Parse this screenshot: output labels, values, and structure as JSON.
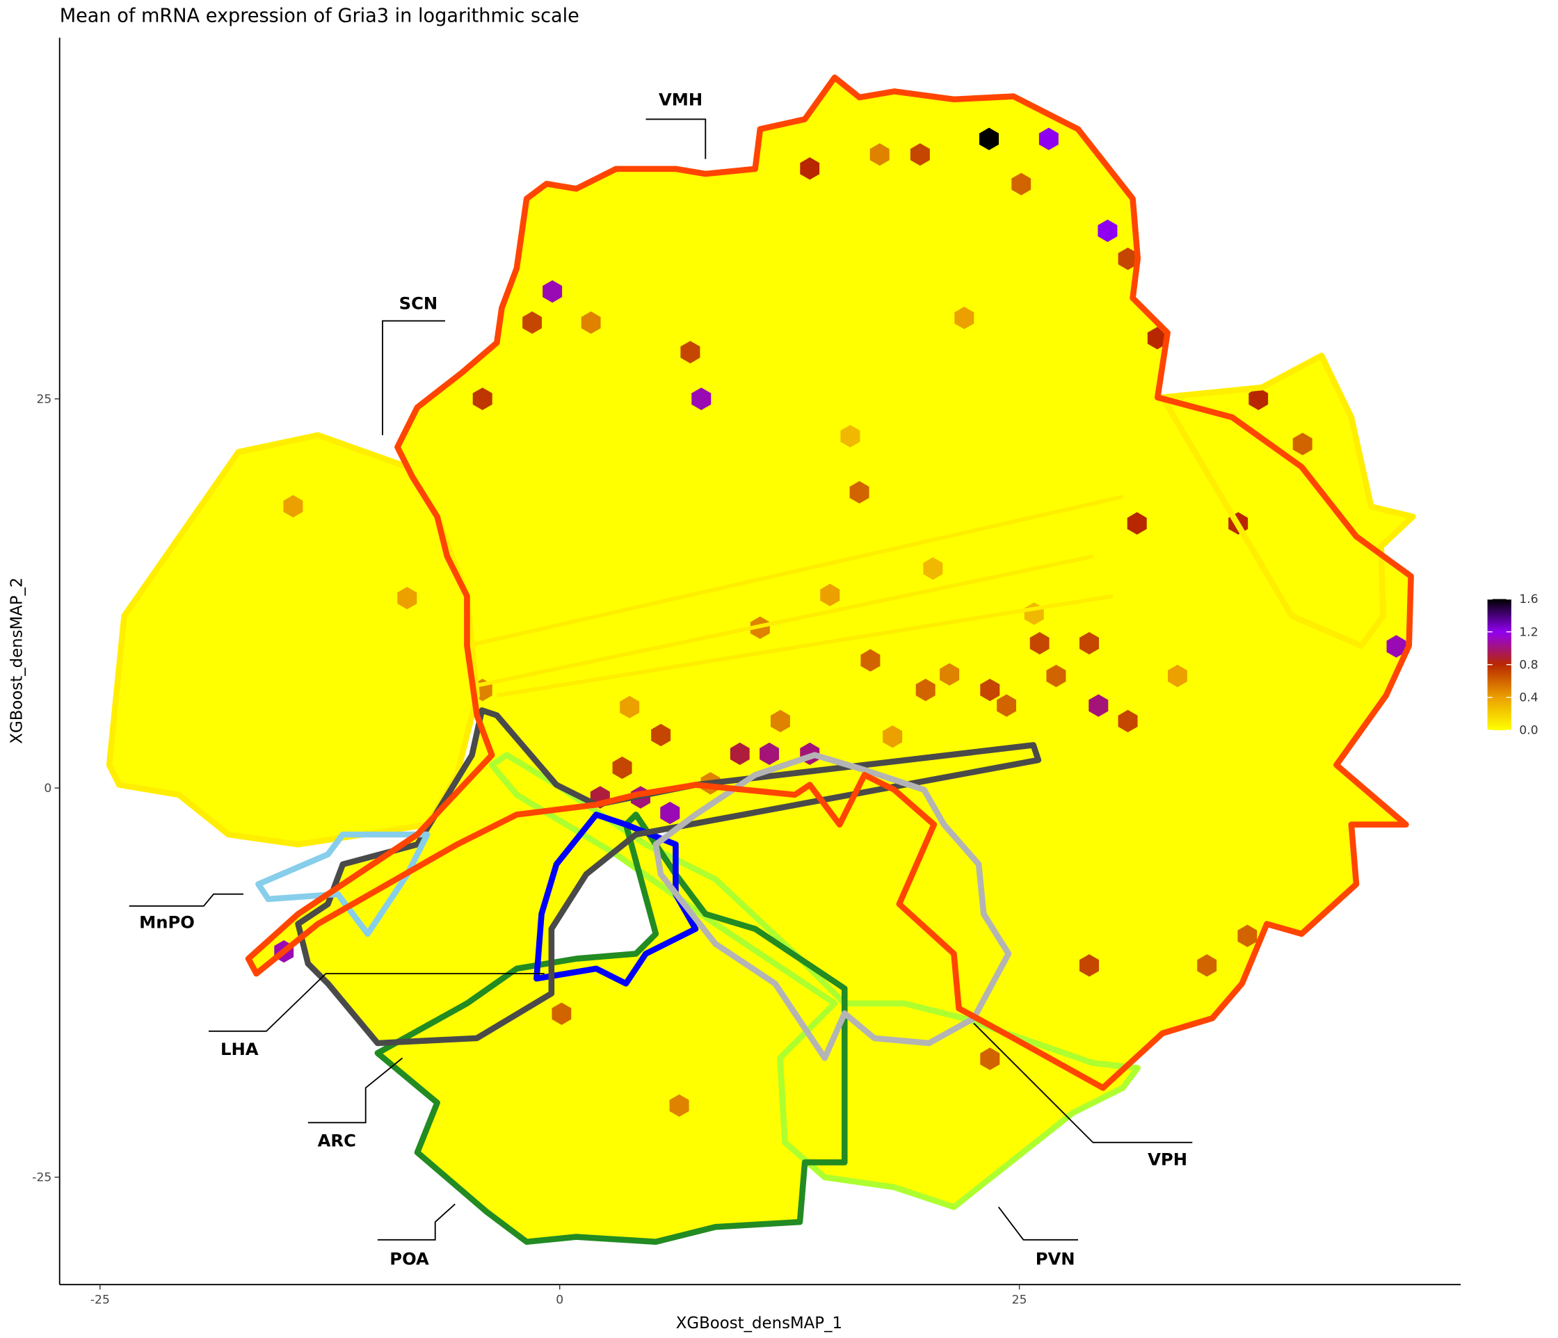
{
  "chart_data": {
    "type": "hexbin",
    "title": "Mean of mRNA expression of Gria3 in logarithmic scale",
    "x_label": "XGBoost_densMAP_1",
    "y_label": "XGBoost_densMAP_2",
    "xlim": [
      -27.2,
      49.0
    ],
    "ylim": [
      -31.9,
      48.2
    ],
    "xticks": [
      -25,
      0,
      25
    ],
    "yticks": [
      -25,
      0,
      25
    ],
    "annotations": [
      "VMH",
      "SCN",
      "MnPO",
      "LHA",
      "ARC",
      "POA",
      "VPH",
      "PVN"
    ],
    "colorbar": {
      "ticks": [
        0.0,
        0.4,
        0.8,
        1.2,
        1.6
      ],
      "tick_labels": [
        "0.0",
        "0.4",
        "0.8",
        "1.2",
        "1.6"
      ],
      "colors": [
        "#ffff00",
        "#eba000",
        "#b82800",
        "#9000f0",
        "#000000"
      ]
    },
    "hexes": {
      "x": [
        23.35,
        26.6,
        29.8,
        -0.4,
        7.7,
        45.5,
        -15.0,
        13.6,
        32.5,
        38.0,
        -4.2,
        36.9,
        31.4,
        29.3,
        11.4,
        9.8,
        13.6,
        4.4,
        6.0,
        2.2,
        30.9,
        19.6,
        7.1,
        -1.5,
        25.1,
        28.8,
        26.1,
        23.4,
        16.3,
        30.9,
        5.5,
        3.4,
        23.4,
        28.8,
        35.2,
        37.4,
        0.1,
        6.5,
        16.9,
        19.9,
        24.3,
        27.0,
        -4.2,
        -14.5,
        -8.3,
        1.7,
        17.4,
        40.4,
        10.9,
        14.7,
        20.3,
        22.0,
        12.0,
        18.1,
        25.8,
        8.2,
        3.8,
        15.8,
        21.2,
        33.6
      ],
      "y": [
        41.7,
        41.7,
        35.8,
        31.9,
        25.0,
        9.1,
        -10.5,
        39.8,
        28.9,
        25.0,
        25.0,
        17.0,
        17.0,
        5.3,
        2.2,
        2.2,
        2.2,
        -0.6,
        -1.6,
        -0.6,
        34.0,
        40.7,
        28.0,
        29.9,
        38.8,
        9.3,
        9.3,
        6.3,
        19.0,
        4.3,
        3.4,
        1.3,
        -17.4,
        -11.4,
        -11.4,
        -9.5,
        -14.5,
        -20.4,
        8.2,
        6.3,
        5.3,
        7.2,
        6.3,
        18.1,
        12.2,
        29.9,
        40.7,
        22.1,
        10.3,
        12.4,
        14.1,
        30.2,
        4.3,
        3.3,
        11.2,
        0.3,
        5.2,
        22.6,
        7.3,
        7.2
      ],
      "values": [
        1.6,
        1.2,
        1.2,
        1.1,
        1.1,
        1.1,
        1.1,
        0.8,
        0.8,
        0.8,
        0.75,
        0.8,
        0.8,
        1.0,
        1.0,
        0.9,
        1.0,
        1.0,
        1.1,
        0.9,
        0.7,
        0.7,
        0.7,
        0.7,
        0.6,
        0.7,
        0.7,
        0.7,
        0.6,
        0.7,
        0.7,
        0.7,
        0.6,
        0.7,
        0.6,
        0.6,
        0.6,
        0.5,
        0.6,
        0.6,
        0.6,
        0.6,
        0.5,
        0.4,
        0.4,
        0.5,
        0.5,
        0.6,
        0.5,
        0.4,
        0.3,
        0.4,
        0.5,
        0.4,
        0.3,
        0.5,
        0.4,
        0.3,
        0.5,
        0.4
      ]
    }
  }
}
